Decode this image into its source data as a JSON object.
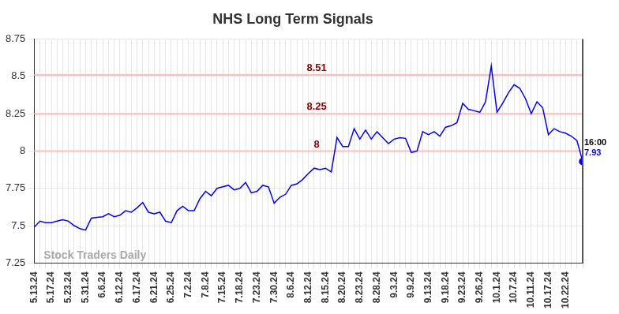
{
  "chart_data": {
    "type": "line",
    "title": "NHS Long Term Signals",
    "watermark": "Stock Traders Daily",
    "categories": [
      "5.13.24",
      null,
      null,
      "5.17.24",
      null,
      null,
      "5.23.24",
      null,
      null,
      "5.31.24",
      null,
      null,
      "6.6.24",
      null,
      null,
      "6.12.24",
      null,
      null,
      "6.17.24",
      null,
      null,
      "6.21.24",
      null,
      null,
      "6.25.24",
      null,
      null,
      "7.2.24",
      null,
      null,
      "7.8.24",
      null,
      null,
      "7.15.24",
      null,
      null,
      "7.18.24",
      null,
      null,
      "7.23.24",
      null,
      null,
      "7.30.24",
      null,
      null,
      "8.6.24",
      null,
      null,
      "8.12.24",
      null,
      null,
      "8.15.24",
      null,
      null,
      "8.20.24",
      null,
      null,
      "8.23.24",
      null,
      null,
      "8.28.24",
      null,
      null,
      "9.3.24",
      null,
      null,
      "9.9.24",
      null,
      null,
      "9.13.24",
      null,
      null,
      "9.18.24",
      null,
      null,
      "9.23.24",
      null,
      null,
      "9.26.24",
      null,
      null,
      "10.1.24",
      null,
      null,
      "10.7.24",
      null,
      null,
      "10.11.24",
      null,
      null,
      "10.17.24",
      null,
      null,
      "10.22.24",
      null,
      null,
      null
    ],
    "values": [
      7.49,
      7.53,
      7.52,
      7.52,
      7.53,
      7.54,
      7.53,
      7.5,
      7.48,
      7.47,
      7.55,
      7.555,
      7.56,
      7.58,
      7.56,
      7.57,
      7.6,
      7.59,
      7.62,
      7.655,
      7.59,
      7.58,
      7.59,
      7.53,
      7.52,
      7.6,
      7.63,
      7.6,
      7.6,
      7.68,
      7.73,
      7.7,
      7.75,
      7.76,
      7.77,
      7.74,
      7.75,
      7.79,
      7.72,
      7.73,
      7.77,
      7.76,
      7.65,
      7.69,
      7.71,
      7.77,
      7.78,
      7.81,
      7.85,
      7.885,
      7.875,
      7.885,
      7.86,
      8.09,
      8.03,
      8.03,
      8.15,
      8.08,
      8.14,
      8.08,
      8.13,
      8.09,
      8.05,
      8.08,
      8.09,
      8.085,
      7.99,
      8.0,
      8.13,
      8.11,
      8.13,
      8.1,
      8.16,
      8.17,
      8.19,
      8.32,
      8.28,
      8.27,
      8.26,
      8.33,
      8.57,
      8.26,
      8.32,
      8.39,
      8.445,
      8.42,
      8.35,
      8.25,
      8.33,
      8.29,
      8.11,
      8.15,
      8.13,
      8.12,
      8.1,
      8.07,
      7.93
    ],
    "color": "#0000ff",
    "ylim": [
      7.25,
      8.75
    ],
    "yticks": [
      7.25,
      7.5,
      7.75,
      8,
      8.25,
      8.5,
      8.75
    ],
    "grid": true,
    "annotations": [
      {
        "value": 8.51,
        "label": "8.51"
      },
      {
        "value": 8.25,
        "label": "8.25"
      },
      {
        "value": 8,
        "label": "8"
      }
    ],
    "end_label": {
      "text": "16:00",
      "value": 7.93,
      "label": "7.93"
    }
  }
}
